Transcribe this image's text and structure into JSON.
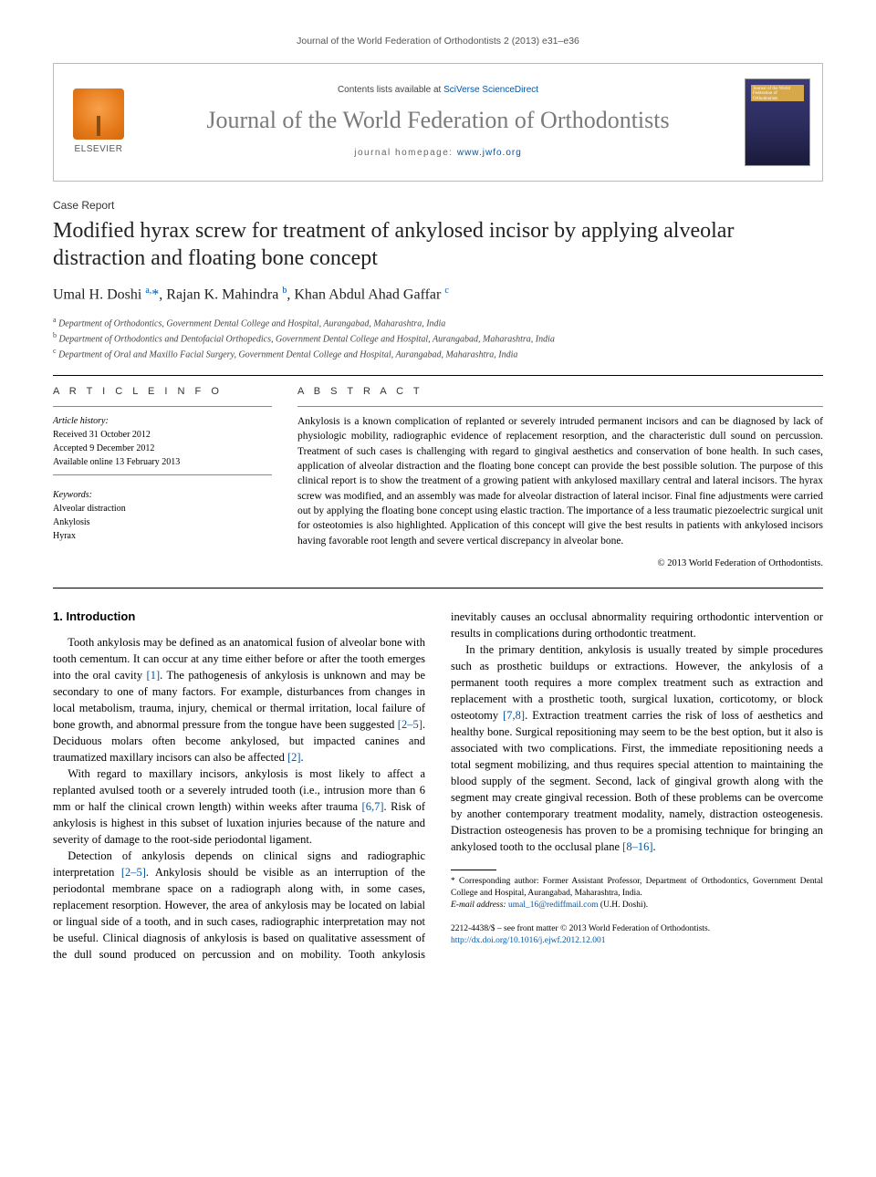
{
  "running_head": "Journal of the World Federation of Orthodontists 2 (2013) e31–e36",
  "masthead": {
    "elsevier_label": "ELSEVIER",
    "contents_prefix": "Contents lists available at ",
    "contents_link": "SciVerse ScienceDirect",
    "journal_name": "Journal of the World Federation of Orthodontists",
    "homepage_prefix": "journal homepage: ",
    "homepage_link": "www.jwfo.org",
    "cover_text": "Journal of the World Federation of Orthodontists"
  },
  "article_type": "Case Report",
  "title": "Modified hyrax screw for treatment of ankylosed incisor by applying alveolar distraction and floating bone concept",
  "authors_html": "Umal H. Doshi <sup>a,</sup><span class='star'>*</span>, Rajan K. Mahindra <sup>b</sup>, Khan Abdul Ahad Gaffar <sup>c</sup>",
  "affiliations": [
    "a Department of Orthodontics, Government Dental College and Hospital, Aurangabad, Maharashtra, India",
    "b Department of Orthodontics and Dentofacial Orthopedics, Government Dental College and Hospital, Aurangabad, Maharashtra, India",
    "c Department of Oral and Maxillo Facial Surgery, Government Dental College and Hospital, Aurangabad, Maharashtra, India"
  ],
  "info": {
    "head": "A R T I C L E   I N F O",
    "history_label": "Article history:",
    "history": [
      "Received 31 October 2012",
      "Accepted 9 December 2012",
      "Available online 13 February 2013"
    ],
    "keywords_label": "Keywords:",
    "keywords": [
      "Alveolar distraction",
      "Ankylosis",
      "Hyrax"
    ]
  },
  "abstract": {
    "head": "A B S T R A C T",
    "body": "Ankylosis is a known complication of replanted or severely intruded permanent incisors and can be diagnosed by lack of physiologic mobility, radiographic evidence of replacement resorption, and the characteristic dull sound on percussion. Treatment of such cases is challenging with regard to gingival aesthetics and conservation of bone health. In such cases, application of alveolar distraction and the floating bone concept can provide the best possible solution. The purpose of this clinical report is to show the treatment of a growing patient with ankylosed maxillary central and lateral incisors. The hyrax screw was modified, and an assembly was made for alveolar distraction of lateral incisor. Final fine adjustments were carried out by applying the floating bone concept using elastic traction. The importance of a less traumatic piezoelectric surgical unit for osteotomies is also highlighted. Application of this concept will give the best results in patients with ankylosed incisors having favorable root length and severe vertical discrepancy in alveolar bone.",
    "copyright": "© 2013 World Federation of Orthodontists."
  },
  "section_heading": "1. Introduction",
  "paragraphs": [
    "Tooth ankylosis may be defined as an anatomical fusion of alveolar bone with tooth cementum. It can occur at any time either before or after the tooth emerges into the oral cavity [1]. The pathogenesis of ankylosis is unknown and may be secondary to one of many factors. For example, disturbances from changes in local metabolism, trauma, injury, chemical or thermal irritation, local failure of bone growth, and abnormal pressure from the tongue have been suggested [2–5]. Deciduous molars often become ankylosed, but impacted canines and traumatized maxillary incisors can also be affected [2].",
    "With regard to maxillary incisors, ankylosis is most likely to affect a replanted avulsed tooth or a severely intruded tooth (i.e., intrusion more than 6 mm or half the clinical crown length) within weeks after trauma [6,7]. Risk of ankylosis is highest in this subset of luxation injuries because of the nature and severity of damage to the root-side periodontal ligament.",
    "Detection of ankylosis depends on clinical signs and radiographic interpretation [2–5]. Ankylosis should be visible as an interruption of the periodontal membrane space on a radiograph along with, in some cases, replacement resorption. However, the area of ankylosis may be located on labial or lingual side of a tooth, and in such cases, radiographic interpretation may not be useful. Clinical diagnosis of ankylosis is based on qualitative assessment of the dull sound produced on percussion and on mobility. Tooth ankylosis inevitably causes an occlusal abnormality requiring orthodontic intervention or results in complications during orthodontic treatment.",
    "In the primary dentition, ankylosis is usually treated by simple procedures such as prosthetic buildups or extractions. However, the ankylosis of a permanent tooth requires a more complex treatment such as extraction and replacement with a prosthetic tooth, surgical luxation, corticotomy, or block osteotomy [7,8]. Extraction treatment carries the risk of loss of aesthetics and healthy bone. Surgical repositioning may seem to be the best option, but it also is associated with two complications. First, the immediate repositioning needs a total segment mobilizing, and thus requires special attention to maintaining the blood supply of the segment. Second, lack of gingival growth along with the segment may create gingival recession. Both of these problems can be overcome by another contemporary treatment modality, namely, distraction osteogenesis. Distraction osteogenesis has proven to be a promising technique for bringing an ankylosed tooth to the occlusal plane [8–16]."
  ],
  "ref_spans": {
    "p0": [
      [
        "[1]",
        "ref"
      ],
      [
        "[2–5]",
        "ref"
      ],
      [
        "[2]",
        "ref"
      ]
    ],
    "p1": [
      [
        "[6,7]",
        "ref"
      ]
    ],
    "p2": [
      [
        "[2–5]",
        "ref"
      ]
    ],
    "p3": [
      [
        "[7,8]",
        "ref"
      ],
      [
        "[8–16]",
        "ref"
      ]
    ]
  },
  "footnote": {
    "corr_label": "* Corresponding author: Former Assistant Professor, Department of Orthodontics, Government Dental College and Hospital, Aurangabad, Maharashtra, India.",
    "email_label": "E-mail address:",
    "email": "umal_16@rediffmail.com",
    "email_suffix": "(U.H. Doshi)."
  },
  "footer": {
    "issn_line": "2212-4438/$ – see front matter © 2013 World Federation of Orthodontists.",
    "doi": "http://dx.doi.org/10.1016/j.ejwf.2012.12.001"
  },
  "colors": {
    "link": "#0056a8",
    "text": "#000000",
    "muted": "#555555",
    "elsevier_orange": "#e67a1a",
    "cover_bg": "#2a2a5a"
  }
}
